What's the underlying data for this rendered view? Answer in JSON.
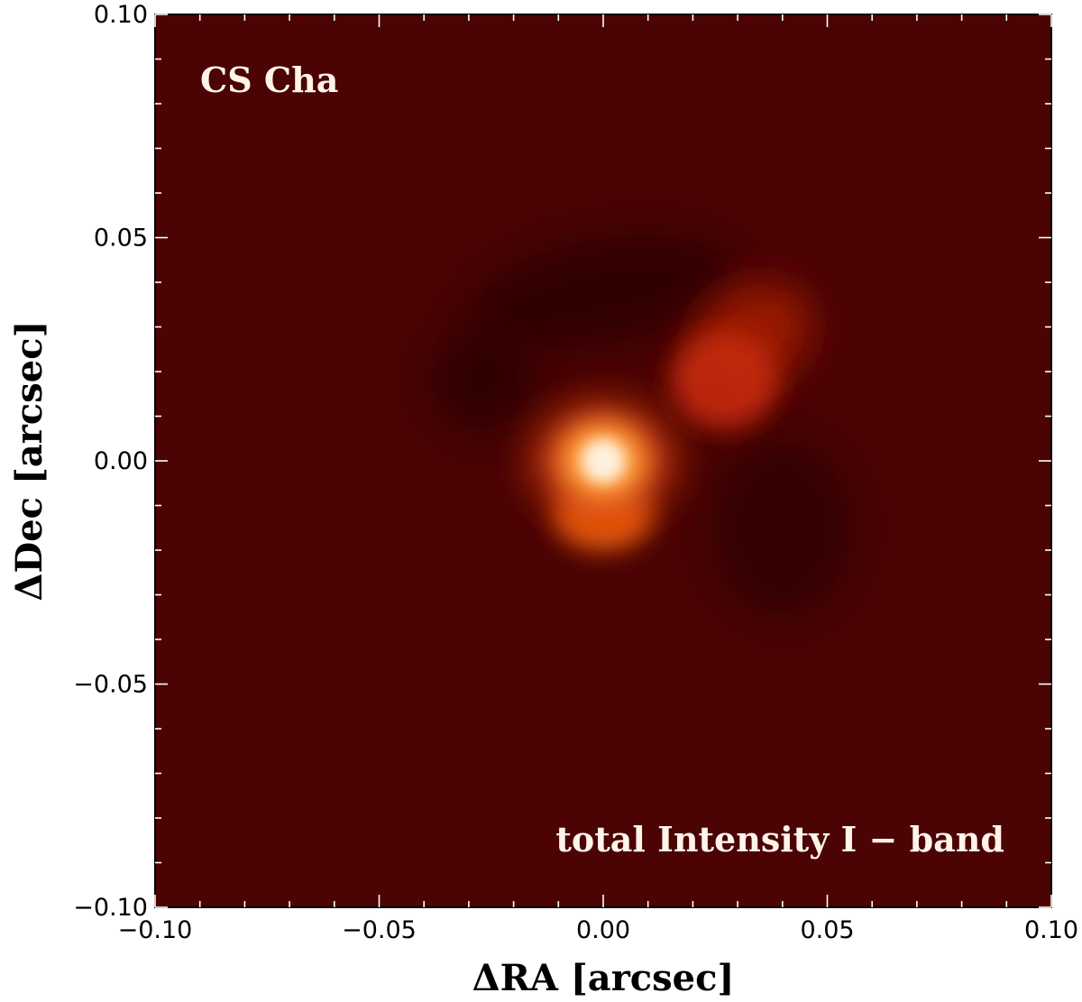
{
  "chart_data": {
    "type": "heatmap",
    "colormap": "gist_heat",
    "background_color": "#4b0304",
    "xlabel": "ΔRA [arcsec]",
    "ylabel": "ΔDec [arcsec]",
    "xlim": [
      -0.1,
      0.1
    ],
    "ylim": [
      -0.1,
      0.1
    ],
    "x_ticks": [
      -0.1,
      -0.05,
      0.0,
      0.05,
      0.1
    ],
    "y_ticks": [
      -0.1,
      -0.05,
      0.0,
      0.05,
      0.1
    ],
    "x_tick_labels": [
      "−0.10",
      "−0.05",
      "0.00",
      "0.05",
      "0.10"
    ],
    "y_tick_labels": [
      "−0.10",
      "−0.05",
      "0.00",
      "0.05",
      "0.10"
    ],
    "minor_tick_step": 0.01,
    "grid": false,
    "annotations": [
      {
        "name": "object-label",
        "text": "CS Cha",
        "position": "top-left"
      },
      {
        "name": "band-label",
        "text": "total Intensity I − band",
        "position": "bottom-right"
      }
    ],
    "emission_features": [
      {
        "name": "primary-peak",
        "x": 0.0,
        "y": 0.0,
        "intensity": 1.0
      },
      {
        "name": "lower-lobe",
        "x": 0.0,
        "y": -0.012,
        "intensity": 0.7
      },
      {
        "name": "secondary-blob",
        "x": 0.027,
        "y": 0.018,
        "intensity": 0.45
      },
      {
        "name": "upper-right-extension",
        "x": 0.033,
        "y": 0.028,
        "intensity": 0.25
      },
      {
        "name": "upper-dark-arc",
        "x": 0.0,
        "y": 0.038,
        "intensity": -0.2
      },
      {
        "name": "left-dark-region",
        "x": -0.027,
        "y": 0.018,
        "intensity": -0.2
      },
      {
        "name": "right-dark-region",
        "x": 0.04,
        "y": -0.015,
        "intensity": -0.18
      }
    ]
  }
}
